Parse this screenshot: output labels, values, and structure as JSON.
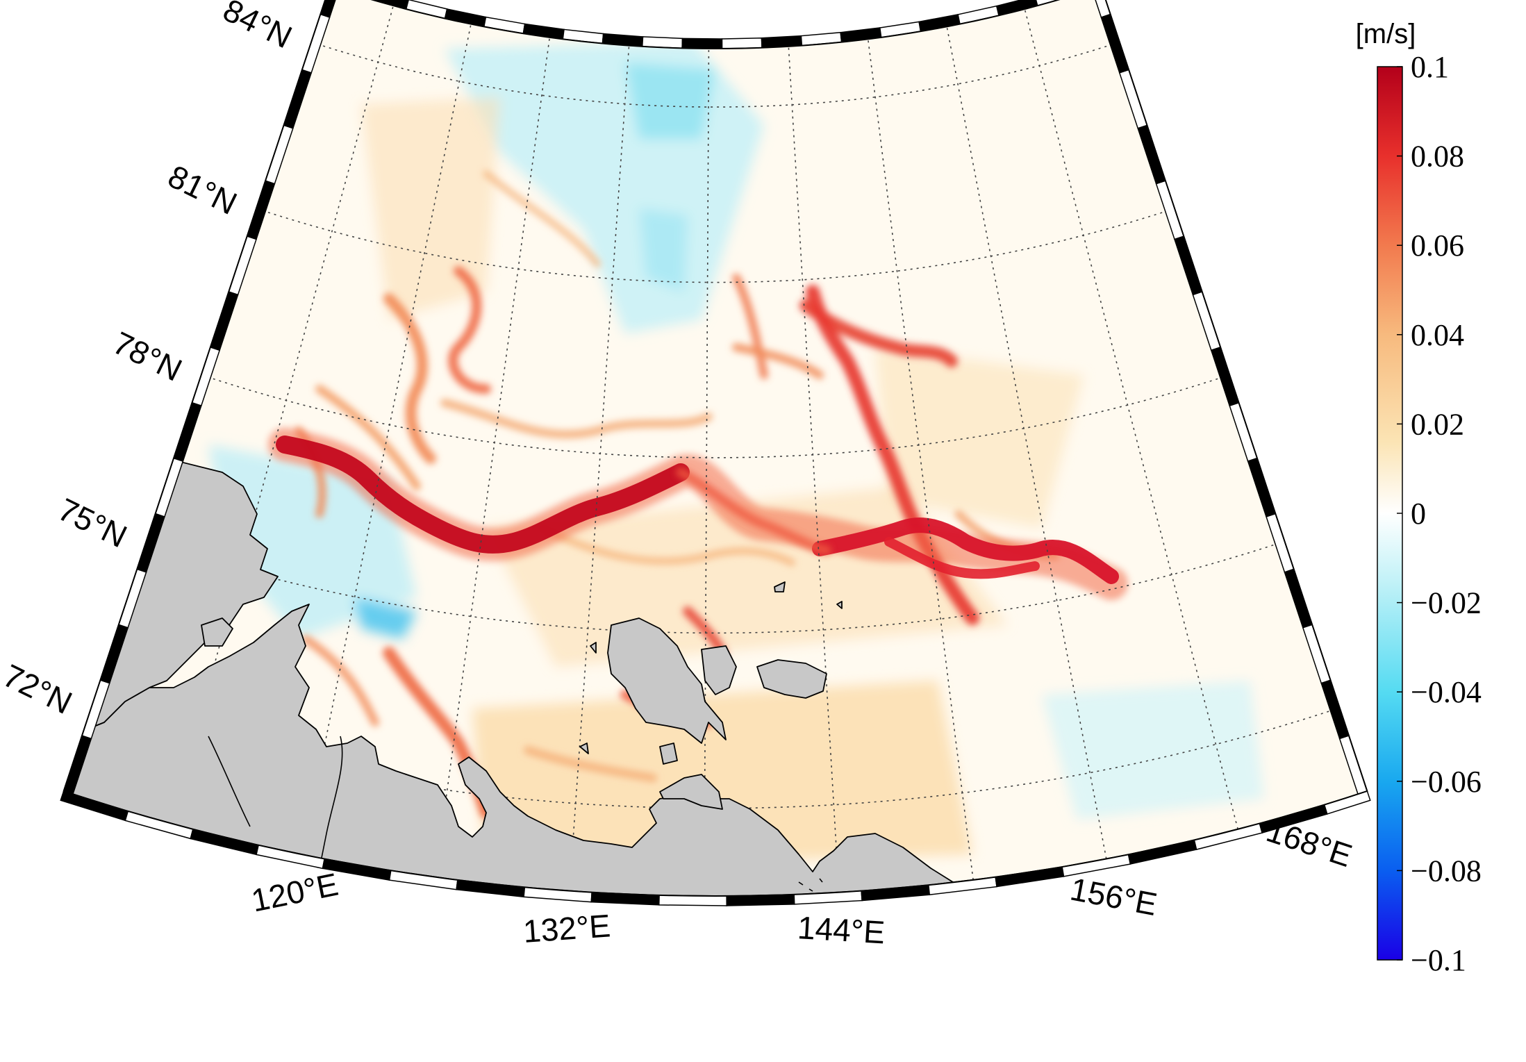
{
  "map": {
    "projection": "lambert-conic",
    "lat_range": [
      70.5,
      85
    ],
    "lon_range": [
      109,
      168
    ],
    "lat_labels": [
      "84°N",
      "81°N",
      "78°N",
      "75°N",
      "72°N"
    ],
    "lon_labels": [
      "120°E",
      "132°E",
      "144°E",
      "156°E",
      "168°E"
    ],
    "lat_values": [
      84,
      81,
      78,
      75,
      72
    ],
    "lon_values": [
      120,
      132,
      144,
      156,
      168
    ],
    "grid_lats": [
      72,
      75,
      78,
      81,
      84
    ],
    "grid_lons": [
      114,
      120,
      126,
      132,
      138,
      144,
      150,
      156,
      162
    ],
    "land_color": "#c8c8c8",
    "coast_color": "#000000"
  },
  "colorbar": {
    "unit": "[m/s]",
    "min": -0.1,
    "max": 0.1,
    "tick_labels": [
      "0.1",
      "0.08",
      "0.06",
      "0.04",
      "0.02",
      "0",
      "−0.02",
      "−0.04",
      "−0.06",
      "−0.08",
      "−0.1"
    ],
    "tick_values": [
      0.1,
      0.08,
      0.06,
      0.04,
      0.02,
      0,
      -0.02,
      -0.04,
      -0.06,
      -0.08,
      -0.1
    ],
    "colormap": [
      "#1a00e6",
      "#0a5ef0",
      "#19a8ef",
      "#55dbf2",
      "#bff1f7",
      "#ffffff",
      "#fbe4b4",
      "#f7ba7e",
      "#f27a4e",
      "#e8302c",
      "#b3001a"
    ]
  }
}
